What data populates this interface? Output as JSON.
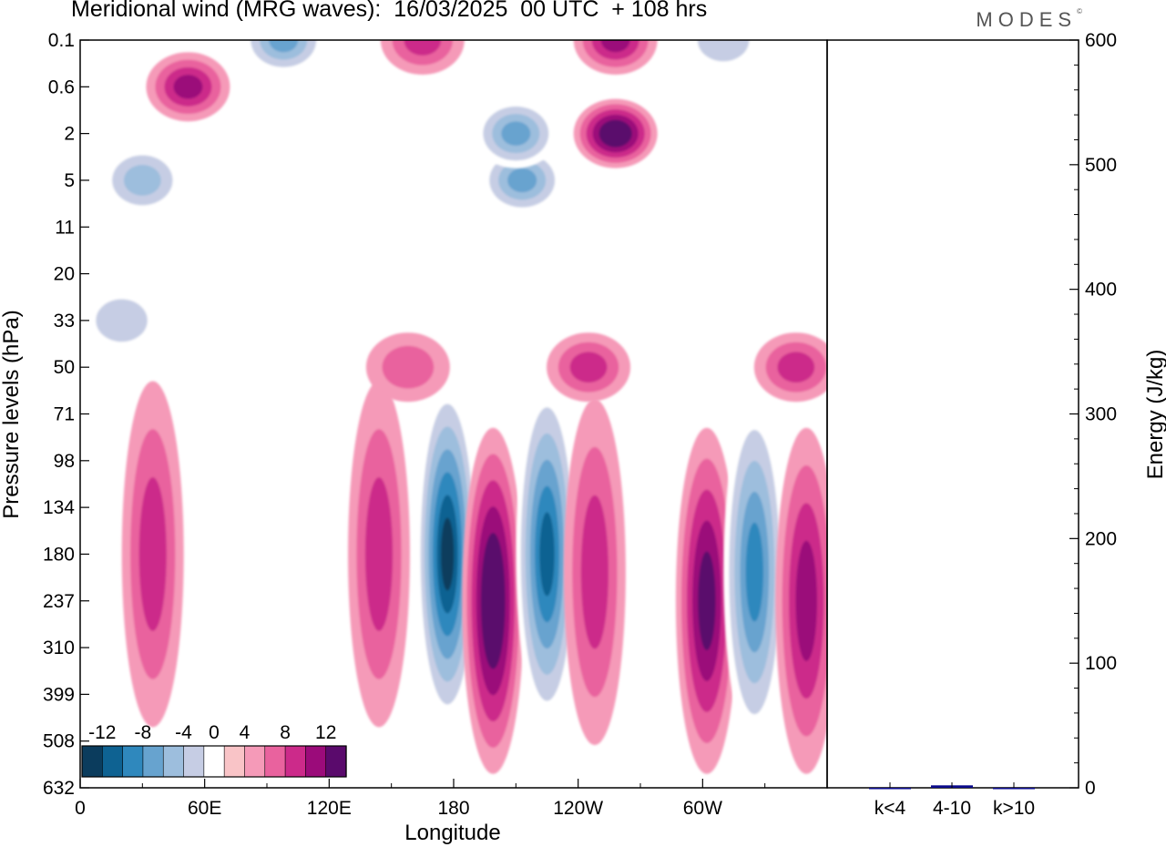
{
  "title": "Meridional wind (MRG waves):  16/03/2025  00 UTC  + 108 hrs",
  "logo": "MODES",
  "logo_mark": "©",
  "chart_data": [
    {
      "type": "heatmap",
      "title": "Meridional wind (MRG waves):  16/03/2025  00 UTC  + 108 hrs",
      "xlabel": "Longitude",
      "ylabel": "Pressure levels (hPa)",
      "x_ticks": [
        "0",
        "60E",
        "120E",
        "180",
        "120W",
        "60W"
      ],
      "x_tick_lon": [
        0,
        60,
        120,
        180,
        240,
        300
      ],
      "x_range_lon": [
        0,
        360
      ],
      "y_ticks": [
        "0.1",
        "0.6",
        "2",
        "5",
        "11",
        "20",
        "33",
        "50",
        "71",
        "98",
        "134",
        "180",
        "237",
        "310",
        "399",
        "508",
        "632"
      ],
      "y_axis": "pressure levels, top 0.1 hPa to bottom 632 hPa",
      "colorbar": {
        "labels": [
          "-12",
          "-8",
          "-4",
          "0",
          "4",
          "8",
          "12"
        ],
        "levels": [
          -14,
          -12,
          -10,
          -8,
          -6,
          -4,
          -2,
          2,
          4,
          6,
          8,
          10,
          12,
          14
        ],
        "colors": [
          "#0b3c5d",
          "#0e6292",
          "#2f88bd",
          "#67a3cf",
          "#9dbedd",
          "#c6cde4",
          "#ffffff",
          "#f9c4c7",
          "#f59ab8",
          "#e9629e",
          "#cc2a8a",
          "#9b0b7a",
          "#5a0a6c"
        ]
      },
      "features": [
        {
          "lon": 177,
          "level": 180,
          "value": -14
        },
        {
          "lon": 199,
          "level": 237,
          "value": 13
        },
        {
          "lon": 225,
          "level": 180,
          "value": -12
        },
        {
          "lon": 248,
          "level": 200,
          "value": 6
        },
        {
          "lon": 302,
          "level": 237,
          "value": 11
        },
        {
          "lon": 325,
          "level": 200,
          "value": -11
        },
        {
          "lon": 350,
          "level": 237,
          "value": 8
        },
        {
          "lon": 144,
          "level": 180,
          "value": 6
        },
        {
          "lon": 35,
          "level": 180,
          "value": 7
        },
        {
          "lon": 258,
          "level": 2,
          "value": 12
        },
        {
          "lon": 213,
          "level": 5,
          "value": -9
        },
        {
          "lon": 210,
          "level": 2,
          "value": -8
        },
        {
          "lon": 52,
          "level": 0.6,
          "value": 9
        },
        {
          "lon": 98,
          "level": 0.1,
          "value": -8
        },
        {
          "lon": 258,
          "level": 0.1,
          "value": 8
        },
        {
          "lon": 310,
          "level": 0.1,
          "value": -5
        },
        {
          "lon": 165,
          "level": 0.1,
          "value": 6
        },
        {
          "lon": 30,
          "level": 5,
          "value": -6
        },
        {
          "lon": 245,
          "level": 50,
          "value": 6
        },
        {
          "lon": 345,
          "level": 50,
          "value": 6
        },
        {
          "lon": 158,
          "level": 50,
          "value": 5
        },
        {
          "lon": 20,
          "level": 33,
          "value": -5
        }
      ]
    },
    {
      "type": "bar",
      "categories": [
        "k<4",
        "4-10",
        "k>10"
      ],
      "values": [
        0,
        2,
        0
      ],
      "ylabel": "Energy (J/kg)",
      "ylim": [
        0,
        600
      ],
      "y_ticks": [
        "0",
        "100",
        "200",
        "300",
        "400",
        "500",
        "600"
      ],
      "bar_color": "#0a0a8c"
    }
  ]
}
